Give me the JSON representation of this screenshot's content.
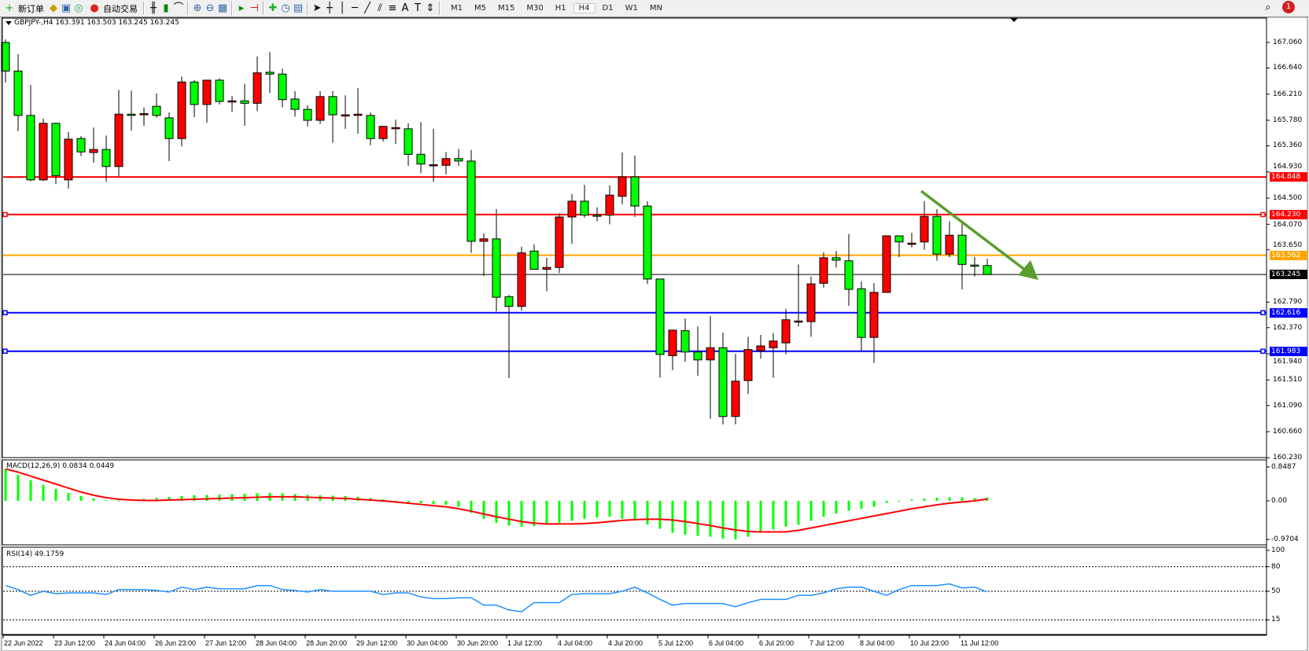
{
  "toolbar": {
    "new_order_label": "新订单",
    "auto_trading_label": "自动交易",
    "icons": [
      "new-order-icon",
      "navigator-icon",
      "terminal-icon",
      "signals-icon",
      "auto-trading-icon",
      "bar-chart-icon",
      "candlestick-icon",
      "line-chart-icon",
      "zoom-in-icon",
      "zoom-out-icon",
      "tile-windows-icon",
      "autoscroll-icon",
      "chart-shift-icon",
      "indicators-icon",
      "periods-icon",
      "templates-icon",
      "cursor-icon",
      "crosshair-icon",
      "vertical-line-icon",
      "horizontal-line-icon",
      "trendline-icon",
      "equidistant-channel-icon",
      "fibonacci-icon",
      "text-icon",
      "text-label-icon",
      "arrows-icon"
    ],
    "timeframes": [
      "M1",
      "M5",
      "M15",
      "M30",
      "H1",
      "H4",
      "D1",
      "W1",
      "MN"
    ],
    "active_timeframe": "H4",
    "notification_count": "1"
  },
  "chart": {
    "title": "GBPJPY-,H4  163.391 163.503 163.245 163.245",
    "colors": {
      "bull": "#ff0000",
      "bear": "#00ff00",
      "outline": "#000000"
    },
    "price_ticks": [
      "167.060",
      "166.640",
      "166.210",
      "165.780",
      "165.360",
      "164.930",
      "164.500",
      "164.070",
      "163.650",
      "162.790",
      "162.370",
      "161.940",
      "161.510",
      "161.090",
      "160.660",
      "160.230"
    ],
    "hlines": [
      {
        "price": "164.848",
        "color": "#ff0000"
      },
      {
        "price": "164.230",
        "color": "#ff0000"
      },
      {
        "price": "163.562",
        "color": "#ffa500"
      },
      {
        "price": "163.245",
        "color": "#000000"
      },
      {
        "price": "162.616",
        "color": "#0000ff"
      },
      {
        "price": "161.983",
        "color": "#0000ff"
      }
    ],
    "arrow_color": "#5a9e2f",
    "time_labels": [
      "22 Jun 2022",
      "23 Jun 12:00",
      "24 Jun 04:00",
      "26 Jun 23:00",
      "27 Jun 12:00",
      "28 Jun 04:00",
      "28 Jun 20:00",
      "29 Jun 12:00",
      "30 Jun 04:00",
      "30 Jun 20:00",
      "1 Jul 12:00",
      "4 Jul 04:00",
      "4 Jul 20:00",
      "5 Jul 12:00",
      "6 Jul 04:00",
      "6 Jul 20:00",
      "7 Jul 12:00",
      "8 Jul 04:00",
      "10 Jul 23:00",
      "11 Jul 12:00"
    ]
  },
  "macd": {
    "title": "MACD(12,26,9) 0.0834 0.0449",
    "axis_labels": [
      "0.8487",
      "0.00",
      "-0.9704"
    ],
    "hist_color": "#00ff00",
    "signal_color": "#ff0000"
  },
  "rsi": {
    "title": "RSI(14) 49.1759",
    "axis_labels": [
      "100",
      "80",
      "50",
      "15"
    ],
    "line_color": "#1e90ff"
  },
  "chart_data": [
    {
      "type": "candlestick",
      "symbol": "GBPJPY-",
      "timeframe": "H4",
      "ylim": [
        160.23,
        167.24
      ],
      "ohlc": [
        [
          167.06,
          167.11,
          166.4,
          166.59
        ],
        [
          166.59,
          166.87,
          165.6,
          165.86
        ],
        [
          165.86,
          166.36,
          164.78,
          164.8
        ],
        [
          164.8,
          165.81,
          164.78,
          165.73
        ],
        [
          165.73,
          165.74,
          164.73,
          164.87
        ],
        [
          164.8,
          165.59,
          164.66,
          165.47
        ],
        [
          165.48,
          165.52,
          165.19,
          165.26
        ],
        [
          165.25,
          165.66,
          165.08,
          165.3
        ],
        [
          165.3,
          165.53,
          164.77,
          165.02
        ],
        [
          165.02,
          166.28,
          164.86,
          165.88
        ],
        [
          165.88,
          166.27,
          165.61,
          165.87
        ],
        [
          165.88,
          165.99,
          165.69,
          165.89
        ],
        [
          166.01,
          166.22,
          165.82,
          165.86
        ],
        [
          165.82,
          165.91,
          165.11,
          165.48
        ],
        [
          165.48,
          166.5,
          165.35,
          166.41
        ],
        [
          166.41,
          166.44,
          165.83,
          166.04
        ],
        [
          166.04,
          166.44,
          165.74,
          166.44
        ],
        [
          166.44,
          166.47,
          166.04,
          166.09
        ],
        [
          166.09,
          166.18,
          165.92,
          166.1
        ],
        [
          166.1,
          166.38,
          165.69,
          166.06
        ],
        [
          166.06,
          166.83,
          165.93,
          166.56
        ],
        [
          166.57,
          166.9,
          166.23,
          166.54
        ],
        [
          166.54,
          166.63,
          165.99,
          166.12
        ],
        [
          166.13,
          166.26,
          165.84,
          165.96
        ],
        [
          165.96,
          166.03,
          165.68,
          165.78
        ],
        [
          165.78,
          166.26,
          165.72,
          166.17
        ],
        [
          166.17,
          166.26,
          165.41,
          165.87
        ],
        [
          165.86,
          166.19,
          165.64,
          165.87
        ],
        [
          165.87,
          166.31,
          165.56,
          165.88
        ],
        [
          165.86,
          165.91,
          165.37,
          165.48
        ],
        [
          165.48,
          165.69,
          165.43,
          165.68
        ],
        [
          165.65,
          165.79,
          165.39,
          165.66
        ],
        [
          165.64,
          165.73,
          165.03,
          165.22
        ],
        [
          165.22,
          165.75,
          164.91,
          165.06
        ],
        [
          165.04,
          165.64,
          164.77,
          165.05
        ],
        [
          165.04,
          165.26,
          164.89,
          165.15
        ],
        [
          165.15,
          165.31,
          165.03,
          165.11
        ],
        [
          165.11,
          165.29,
          163.6,
          163.79
        ],
        [
          163.79,
          163.92,
          163.22,
          163.83
        ],
        [
          163.83,
          164.32,
          162.64,
          162.87
        ],
        [
          162.88,
          162.91,
          161.54,
          162.72
        ],
        [
          162.72,
          163.7,
          162.65,
          163.6
        ],
        [
          163.63,
          163.74,
          163.33,
          163.33
        ],
        [
          163.33,
          163.52,
          162.97,
          163.36
        ],
        [
          163.36,
          164.25,
          163.27,
          164.19
        ],
        [
          164.19,
          164.57,
          163.75,
          164.45
        ],
        [
          164.45,
          164.72,
          164.18,
          164.22
        ],
        [
          164.22,
          164.35,
          164.12,
          164.21
        ],
        [
          164.22,
          164.71,
          164.07,
          164.55
        ],
        [
          164.53,
          165.25,
          164.4,
          164.85
        ],
        [
          164.85,
          165.2,
          164.19,
          164.37
        ],
        [
          164.37,
          164.45,
          163.09,
          163.17
        ],
        [
          163.17,
          163.17,
          161.55,
          161.93
        ],
        [
          161.91,
          162.33,
          161.67,
          162.33
        ],
        [
          162.32,
          162.52,
          161.81,
          161.97
        ],
        [
          161.97,
          162.39,
          161.58,
          161.84
        ],
        [
          161.84,
          162.56,
          160.87,
          162.04
        ],
        [
          162.04,
          162.29,
          160.78,
          160.91
        ],
        [
          160.91,
          161.94,
          160.78,
          161.49
        ],
        [
          161.5,
          162.22,
          161.28,
          162.01
        ],
        [
          161.99,
          162.25,
          161.86,
          162.07
        ],
        [
          162.04,
          162.28,
          161.55,
          162.15
        ],
        [
          162.12,
          162.68,
          161.93,
          162.5
        ],
        [
          162.47,
          163.41,
          162.39,
          162.48
        ],
        [
          162.47,
          163.21,
          162.22,
          163.09
        ],
        [
          163.1,
          163.61,
          163.03,
          163.52
        ],
        [
          163.52,
          163.63,
          163.36,
          163.48
        ],
        [
          163.47,
          163.91,
          162.73,
          163.0
        ],
        [
          163.01,
          163.13,
          161.98,
          162.21
        ],
        [
          162.21,
          163.1,
          161.79,
          162.95
        ],
        [
          162.95,
          163.89,
          162.95,
          163.88
        ],
        [
          163.88,
          163.88,
          163.53,
          163.78
        ],
        [
          163.74,
          163.93,
          163.69,
          163.76
        ],
        [
          163.78,
          164.45,
          163.65,
          164.2
        ],
        [
          164.2,
          164.32,
          163.47,
          163.58
        ],
        [
          163.58,
          164.12,
          163.53,
          163.89
        ],
        [
          163.89,
          164.12,
          163.0,
          163.41
        ],
        [
          163.4,
          163.53,
          163.21,
          163.38
        ],
        [
          163.391,
          163.503,
          163.245,
          163.245
        ]
      ]
    },
    {
      "type": "bar+line",
      "name": "MACD(12,26,9)",
      "ylim": [
        -0.9704,
        0.8487
      ],
      "histogram": [
        0.8,
        0.65,
        0.52,
        0.4,
        0.3,
        0.2,
        0.12,
        0.06,
        0.02,
        0.01,
        0.02,
        0.05,
        0.08,
        0.1,
        0.12,
        0.14,
        0.15,
        0.16,
        0.17,
        0.18,
        0.19,
        0.2,
        0.19,
        0.17,
        0.15,
        0.14,
        0.13,
        0.12,
        0.1,
        0.07,
        0.04,
        0.0,
        -0.04,
        -0.06,
        -0.08,
        -0.1,
        -0.15,
        -0.3,
        -0.45,
        -0.55,
        -0.62,
        -0.65,
        -0.63,
        -0.6,
        -0.55,
        -0.5,
        -0.45,
        -0.42,
        -0.4,
        -0.45,
        -0.5,
        -0.6,
        -0.7,
        -0.8,
        -0.85,
        -0.88,
        -0.9,
        -0.95,
        -0.97,
        -0.9,
        -0.8,
        -0.72,
        -0.65,
        -0.6,
        -0.5,
        -0.4,
        -0.32,
        -0.25,
        -0.2,
        -0.15,
        -0.05,
        0.0,
        0.03,
        0.06,
        0.08,
        0.09,
        0.09,
        0.07,
        0.0834
      ],
      "signal": [
        0.8,
        0.72,
        0.62,
        0.52,
        0.42,
        0.32,
        0.22,
        0.14,
        0.08,
        0.04,
        0.02,
        0.01,
        0.01,
        0.02,
        0.03,
        0.04,
        0.05,
        0.06,
        0.07,
        0.08,
        0.09,
        0.1,
        0.1,
        0.1,
        0.09,
        0.08,
        0.07,
        0.06,
        0.04,
        0.02,
        0.0,
        -0.03,
        -0.06,
        -0.09,
        -0.12,
        -0.15,
        -0.2,
        -0.26,
        -0.33,
        -0.4,
        -0.46,
        -0.52,
        -0.56,
        -0.58,
        -0.58,
        -0.58,
        -0.57,
        -0.55,
        -0.52,
        -0.49,
        -0.47,
        -0.46,
        -0.46,
        -0.48,
        -0.52,
        -0.57,
        -0.62,
        -0.68,
        -0.73,
        -0.77,
        -0.78,
        -0.78,
        -0.78,
        -0.74,
        -0.68,
        -0.62,
        -0.56,
        -0.5,
        -0.44,
        -0.38,
        -0.32,
        -0.26,
        -0.2,
        -0.15,
        -0.1,
        -0.06,
        -0.03,
        0.0,
        0.0449
      ]
    },
    {
      "type": "line",
      "name": "RSI(14)",
      "ylim": [
        0,
        100
      ],
      "levels": [
        80,
        50,
        15
      ],
      "values": [
        57,
        52,
        45,
        50,
        47,
        48,
        48,
        48,
        46,
        52,
        52,
        52,
        51,
        49,
        55,
        52,
        55,
        53,
        53,
        53,
        57,
        57,
        52,
        51,
        49,
        52,
        50,
        50,
        50,
        50,
        46,
        48,
        48,
        43,
        41,
        41,
        42,
        42,
        33,
        33,
        27,
        25,
        36,
        36,
        36,
        46,
        47,
        47,
        47,
        50,
        55,
        48,
        40,
        33,
        35,
        35,
        35,
        35,
        31,
        36,
        40,
        40,
        40,
        45,
        45,
        48,
        53,
        55,
        55,
        50,
        45,
        52,
        57,
        57,
        57,
        59,
        54,
        55,
        49.1759
      ]
    }
  ]
}
